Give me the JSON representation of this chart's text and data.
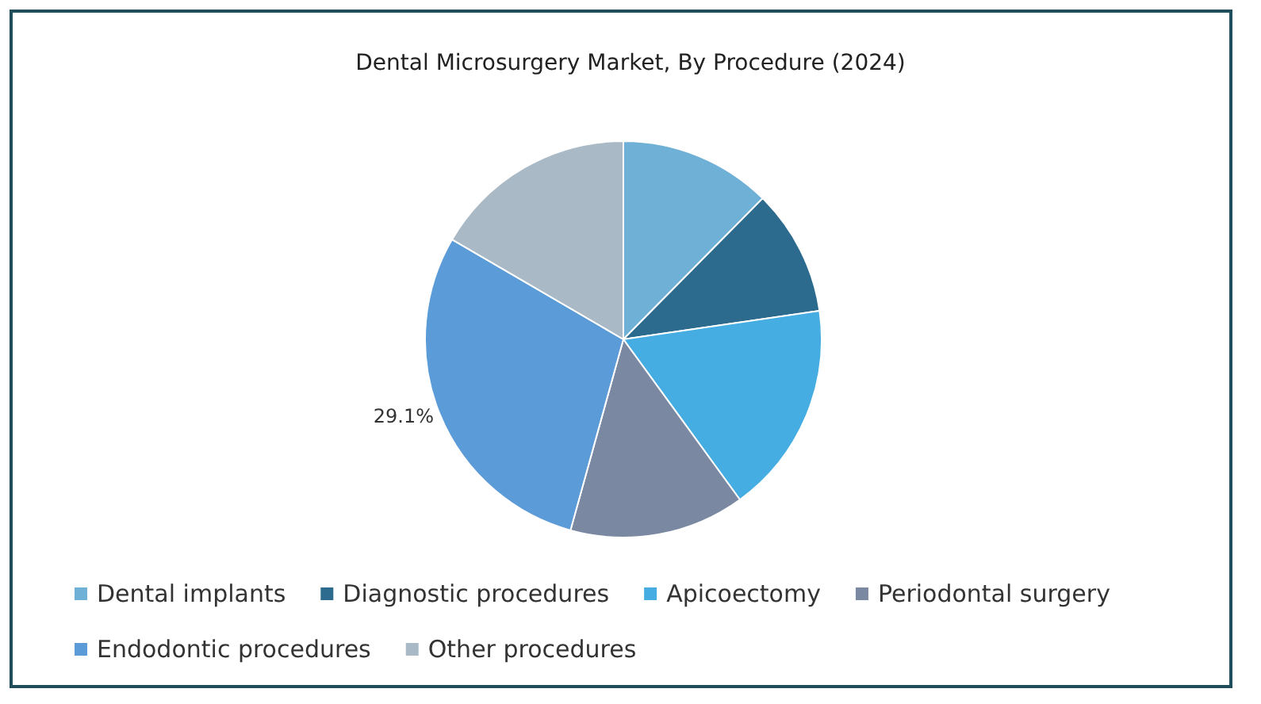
{
  "chart_data": {
    "type": "pie",
    "title": "Dental Microsurgery Market, By Procedure (2024)",
    "categories": [
      "Dental implants",
      "Diagnostic procedures",
      "Apicoectomy",
      "Periodontal surgery",
      "Endodontic procedures",
      "Other procedures"
    ],
    "values": [
      12.4,
      10.3,
      17.3,
      14.3,
      29.1,
      16.6
    ],
    "colors": [
      "#6fb0d6",
      "#2c6a8e",
      "#45ade2",
      "#7a88a2",
      "#5b9bd8",
      "#a9b9c5"
    ],
    "value_labels": [
      null,
      null,
      null,
      null,
      "29.1%",
      null
    ],
    "legend": "bottom"
  }
}
